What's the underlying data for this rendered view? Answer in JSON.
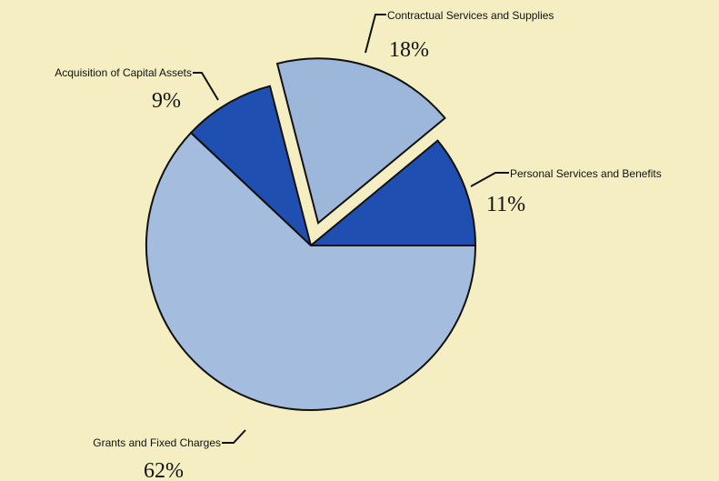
{
  "chart_data": {
    "type": "pie",
    "title": "",
    "slices": [
      {
        "label": "Personal Services and Benefits",
        "value": 11,
        "value_label": "11%",
        "color": "#1f4fb0",
        "exploded": false
      },
      {
        "label": "Contractual Services and Supplies",
        "value": 18,
        "value_label": "18%",
        "color": "#9db7da",
        "exploded": true
      },
      {
        "label": "Acquisition of Capital Assets",
        "value": 9,
        "value_label": "9%",
        "color": "#1f4fb0",
        "exploded": false
      },
      {
        "label": "Grants and Fixed Charges",
        "value": 62,
        "value_label": "62%",
        "color": "#a4bcdd",
        "exploded": false
      }
    ],
    "start_angle_deg": 0,
    "direction": "counterclockwise",
    "background": "#f4eec2",
    "legend": "none"
  }
}
